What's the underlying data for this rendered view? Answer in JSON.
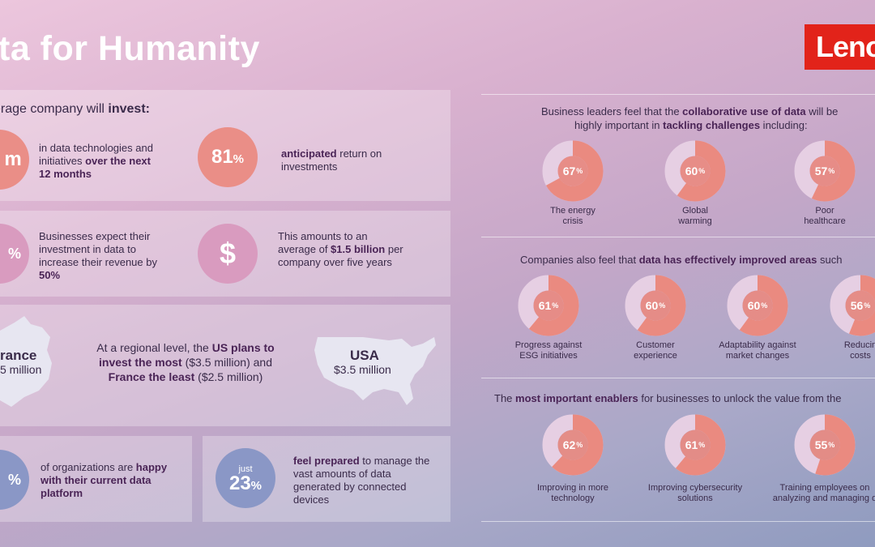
{
  "title": "ta for Humanity",
  "logo": "Leno",
  "invest_heading": {
    "pre": "erage company will ",
    "bold": "invest:"
  },
  "stats": {
    "invest_amount": "m",
    "invest_text_1": "in data technologies and initiatives ",
    "invest_text_bold": "over the next 12 months",
    "roi_value": "81",
    "roi_unit": "%",
    "roi_bold": "anticipated",
    "roi_text": " return on investments",
    "revenue_percent": "%",
    "revenue_text": "Businesses expect their investment in data to increase their revenue by ",
    "revenue_bold": "50%",
    "dollar_symbol": "$",
    "avg_text_1": "This amounts to an average of ",
    "avg_bold": "$1.5 billion",
    "avg_text_2": " per company over five years"
  },
  "regional": {
    "france_title": "rance",
    "france_value": "5 million",
    "text_1": "At a regional level, the ",
    "bold_1": "US plans to invest the most",
    "text_2": " ($3.5 million) and ",
    "bold_2": "France the least",
    "text_3": " ($2.5 million)",
    "usa_title": "USA",
    "usa_value": "$3.5 million"
  },
  "platform": {
    "percent": "%",
    "text": "of organizations are ",
    "bold": "happy with their current data platform"
  },
  "prepared": {
    "just": "just",
    "value": "23",
    "unit": "%",
    "bold": "feel prepared",
    "text": " to manage the vast amounts of data generated by connected devices"
  },
  "colors": {
    "donut_fill": "#ea8a80",
    "donut_track": "#e6cfe3",
    "logo": "#e2231a"
  },
  "section1": {
    "head_1": "Business leaders feel that the ",
    "head_bold_1": "collaborative use of data",
    "head_2": " will be",
    "head_3": "highly important in ",
    "head_bold_2": "tackling challenges",
    "head_4": " including:",
    "items": [
      {
        "value": 67,
        "label_1": "The energy",
        "label_2": "crisis"
      },
      {
        "value": 60,
        "label_1": "Global",
        "label_2": "warming"
      },
      {
        "value": 57,
        "label_1": "Poor",
        "label_2": "healthcare"
      }
    ]
  },
  "section2": {
    "head_1": "Companies also feel that ",
    "head_bold": "data has effectively improved areas",
    "head_2": " such",
    "items": [
      {
        "value": 61,
        "label_1": "Progress against",
        "label_2": "ESG initiatives"
      },
      {
        "value": 60,
        "label_1": "Customer",
        "label_2": "experience"
      },
      {
        "value": 60,
        "label_1": "Adaptability against",
        "label_2": "market changes"
      },
      {
        "value": 56,
        "label_1": "Reducin",
        "label_2": "costs"
      }
    ]
  },
  "section3": {
    "head_1": "The ",
    "head_bold": "most important enablers",
    "head_2": " for businesses to unlock the value from the",
    "items": [
      {
        "value": 62,
        "label_1": "Improving in more",
        "label_2": "technology"
      },
      {
        "value": 61,
        "label_1": "Improving cybersecurity",
        "label_2": "solutions"
      },
      {
        "value": 55,
        "label_1": "Training employees on",
        "label_2": "analyzing and managing d"
      }
    ]
  },
  "percent_sign": "%"
}
